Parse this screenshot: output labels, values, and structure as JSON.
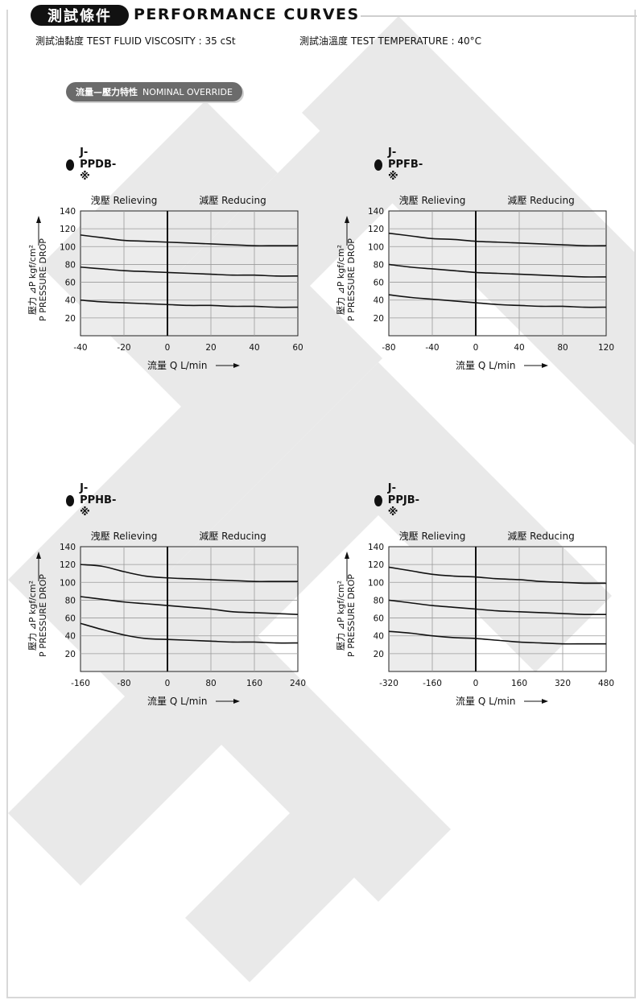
{
  "header": {
    "badge": "測試條件",
    "title": "PERFORMANCE CURVES",
    "viscosity": "測試油黏度 TEST FLUID VISCOSITY : 35 cSt",
    "temperature": "測試油溫度 TEST TEMPERATURE : 40°C"
  },
  "section": {
    "badge_cn": "流量—壓力特性",
    "badge_en": "NOMINAL OVERRIDE"
  },
  "chart_data": [
    {
      "type": "line",
      "title": "J-PPDB-※",
      "region_left": "洩壓 Relieving",
      "region_right": "減壓 Reducing",
      "ylabel_line1": "壓力 ⊿P kgf/cm²",
      "ylabel_line2": "P PRESSURE DROP",
      "xlabel": "流量 Q L/min",
      "xlim": [
        -40,
        60
      ],
      "ylim": [
        0,
        140
      ],
      "x_ticks": [
        -40,
        -20,
        0,
        20,
        40,
        60
      ],
      "y_ticks": [
        20,
        40,
        60,
        80,
        100,
        120,
        140
      ],
      "grid": true,
      "series": [
        {
          "x": [
            -40,
            -30,
            -20,
            -10,
            0,
            10,
            20,
            30,
            40,
            50,
            60
          ],
          "y": [
            113,
            110,
            107,
            106,
            105,
            104,
            103,
            102,
            101,
            101,
            101
          ]
        },
        {
          "x": [
            -40,
            -30,
            -20,
            -10,
            0,
            10,
            20,
            30,
            40,
            50,
            60
          ],
          "y": [
            77,
            75,
            73,
            72,
            71,
            70,
            69,
            68,
            68,
            67,
            67
          ]
        },
        {
          "x": [
            -40,
            -30,
            -20,
            -10,
            0,
            10,
            20,
            30,
            40,
            50,
            60
          ],
          "y": [
            40,
            38,
            37,
            36,
            35,
            34,
            34,
            33,
            33,
            32,
            32
          ]
        }
      ]
    },
    {
      "type": "line",
      "title": "J-PPFB-※",
      "region_left": "洩壓 Relieving",
      "region_right": "減壓 Reducing",
      "ylabel_line1": "壓力 ⊿P kgf/cm²",
      "ylabel_line2": "P PRESSURE DROP",
      "xlabel": "流量 Q L/min",
      "xlim": [
        -80,
        120
      ],
      "ylim": [
        0,
        140
      ],
      "x_ticks": [
        -80,
        -40,
        0,
        40,
        80,
        120
      ],
      "y_ticks": [
        20,
        40,
        60,
        80,
        100,
        120,
        140
      ],
      "grid": true,
      "series": [
        {
          "x": [
            -80,
            -60,
            -40,
            -20,
            0,
            20,
            40,
            60,
            80,
            100,
            120
          ],
          "y": [
            115,
            112,
            109,
            108,
            106,
            105,
            104,
            103,
            102,
            101,
            101
          ]
        },
        {
          "x": [
            -80,
            -60,
            -40,
            -20,
            0,
            20,
            40,
            60,
            80,
            100,
            120
          ],
          "y": [
            80,
            77,
            75,
            73,
            71,
            70,
            69,
            68,
            67,
            66,
            66
          ]
        },
        {
          "x": [
            -80,
            -60,
            -40,
            -20,
            0,
            20,
            40,
            60,
            80,
            100,
            120
          ],
          "y": [
            46,
            43,
            41,
            39,
            37,
            35,
            34,
            33,
            33,
            32,
            32
          ]
        }
      ]
    },
    {
      "type": "line",
      "title": "J-PPHB-※",
      "region_left": "洩壓 Relieving",
      "region_right": "減壓 Reducing",
      "ylabel_line1": "壓力 ⊿P kgf/cm²",
      "ylabel_line2": "P PRESSURE DROP",
      "xlabel": "流量 Q L/min",
      "xlim": [
        -160,
        240
      ],
      "ylim": [
        0,
        140
      ],
      "x_ticks": [
        -160,
        -80,
        0,
        80,
        160,
        240
      ],
      "y_ticks": [
        20,
        40,
        60,
        80,
        100,
        120,
        140
      ],
      "grid": true,
      "series": [
        {
          "x": [
            -160,
            -120,
            -80,
            -40,
            0,
            40,
            80,
            120,
            160,
            200,
            240
          ],
          "y": [
            120,
            118,
            112,
            107,
            105,
            104,
            103,
            102,
            101,
            101,
            101
          ]
        },
        {
          "x": [
            -160,
            -120,
            -80,
            -40,
            0,
            40,
            80,
            120,
            160,
            200,
            240
          ],
          "y": [
            84,
            81,
            78,
            76,
            74,
            72,
            70,
            67,
            66,
            65,
            64
          ]
        },
        {
          "x": [
            -160,
            -120,
            -80,
            -40,
            0,
            40,
            80,
            120,
            160,
            200,
            240
          ],
          "y": [
            54,
            47,
            41,
            37,
            36,
            35,
            34,
            33,
            33,
            32,
            32
          ]
        }
      ]
    },
    {
      "type": "line",
      "title": "J-PPJB-※",
      "region_left": "洩壓 Relieving",
      "region_right": "減壓 Reducing",
      "ylabel_line1": "壓力 ⊿P kgf/cm²",
      "ylabel_line2": "P PRESSURE DROP",
      "xlabel": "流量 Q L/min",
      "xlim": [
        -320,
        480
      ],
      "ylim": [
        0,
        140
      ],
      "x_ticks": [
        -320,
        -160,
        0,
        160,
        320,
        480
      ],
      "y_ticks": [
        20,
        40,
        60,
        80,
        100,
        120,
        140
      ],
      "grid": true,
      "series": [
        {
          "x": [
            -320,
            -240,
            -160,
            -80,
            0,
            80,
            160,
            240,
            320,
            400,
            480
          ],
          "y": [
            117,
            113,
            109,
            107,
            106,
            104,
            103,
            101,
            100,
            99,
            99
          ]
        },
        {
          "x": [
            -320,
            -240,
            -160,
            -80,
            0,
            80,
            160,
            240,
            320,
            400,
            480
          ],
          "y": [
            80,
            77,
            74,
            72,
            70,
            68,
            67,
            66,
            65,
            64,
            64
          ]
        },
        {
          "x": [
            -320,
            -240,
            -160,
            -80,
            0,
            80,
            160,
            240,
            320,
            400,
            480
          ],
          "y": [
            45,
            43,
            40,
            38,
            37,
            35,
            33,
            32,
            31,
            31,
            31
          ]
        }
      ]
    }
  ]
}
